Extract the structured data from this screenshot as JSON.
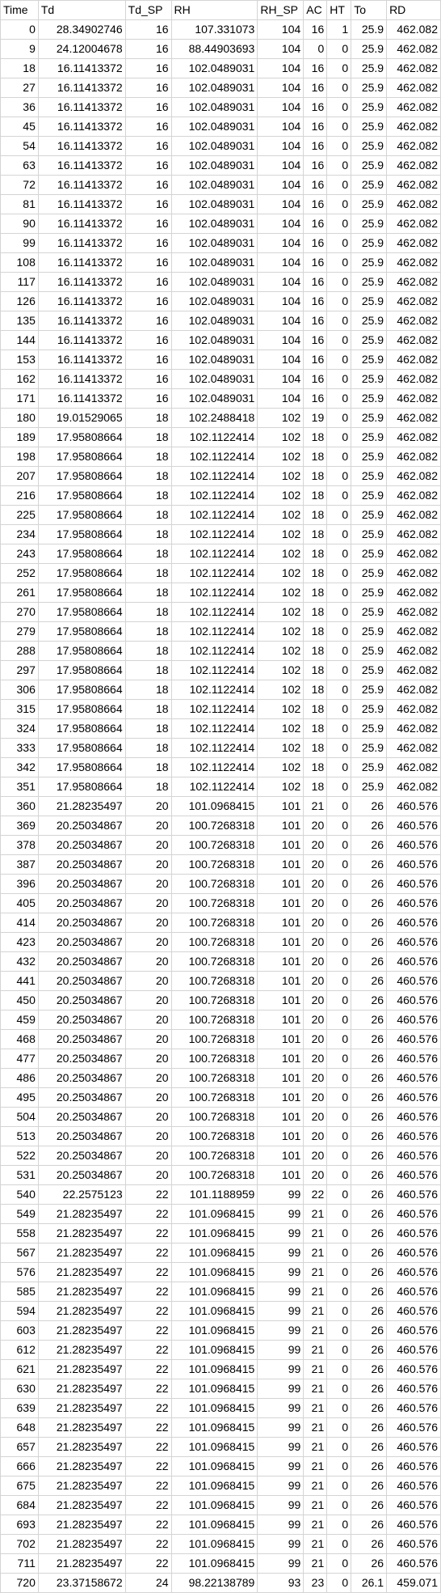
{
  "columns": [
    "Time",
    "Td",
    "Td_SP",
    "RH",
    "RH_SP",
    "AC",
    "HT",
    "To",
    "RD"
  ],
  "rows": [
    [
      "0",
      "28.34902746",
      "16",
      "107.331073",
      "104",
      "16",
      "1",
      "25.9",
      "462.082"
    ],
    [
      "9",
      "24.12004678",
      "16",
      "88.44903693",
      "104",
      "0",
      "0",
      "25.9",
      "462.082"
    ],
    [
      "18",
      "16.11413372",
      "16",
      "102.0489031",
      "104",
      "16",
      "0",
      "25.9",
      "462.082"
    ],
    [
      "27",
      "16.11413372",
      "16",
      "102.0489031",
      "104",
      "16",
      "0",
      "25.9",
      "462.082"
    ],
    [
      "36",
      "16.11413372",
      "16",
      "102.0489031",
      "104",
      "16",
      "0",
      "25.9",
      "462.082"
    ],
    [
      "45",
      "16.11413372",
      "16",
      "102.0489031",
      "104",
      "16",
      "0",
      "25.9",
      "462.082"
    ],
    [
      "54",
      "16.11413372",
      "16",
      "102.0489031",
      "104",
      "16",
      "0",
      "25.9",
      "462.082"
    ],
    [
      "63",
      "16.11413372",
      "16",
      "102.0489031",
      "104",
      "16",
      "0",
      "25.9",
      "462.082"
    ],
    [
      "72",
      "16.11413372",
      "16",
      "102.0489031",
      "104",
      "16",
      "0",
      "25.9",
      "462.082"
    ],
    [
      "81",
      "16.11413372",
      "16",
      "102.0489031",
      "104",
      "16",
      "0",
      "25.9",
      "462.082"
    ],
    [
      "90",
      "16.11413372",
      "16",
      "102.0489031",
      "104",
      "16",
      "0",
      "25.9",
      "462.082"
    ],
    [
      "99",
      "16.11413372",
      "16",
      "102.0489031",
      "104",
      "16",
      "0",
      "25.9",
      "462.082"
    ],
    [
      "108",
      "16.11413372",
      "16",
      "102.0489031",
      "104",
      "16",
      "0",
      "25.9",
      "462.082"
    ],
    [
      "117",
      "16.11413372",
      "16",
      "102.0489031",
      "104",
      "16",
      "0",
      "25.9",
      "462.082"
    ],
    [
      "126",
      "16.11413372",
      "16",
      "102.0489031",
      "104",
      "16",
      "0",
      "25.9",
      "462.082"
    ],
    [
      "135",
      "16.11413372",
      "16",
      "102.0489031",
      "104",
      "16",
      "0",
      "25.9",
      "462.082"
    ],
    [
      "144",
      "16.11413372",
      "16",
      "102.0489031",
      "104",
      "16",
      "0",
      "25.9",
      "462.082"
    ],
    [
      "153",
      "16.11413372",
      "16",
      "102.0489031",
      "104",
      "16",
      "0",
      "25.9",
      "462.082"
    ],
    [
      "162",
      "16.11413372",
      "16",
      "102.0489031",
      "104",
      "16",
      "0",
      "25.9",
      "462.082"
    ],
    [
      "171",
      "16.11413372",
      "16",
      "102.0489031",
      "104",
      "16",
      "0",
      "25.9",
      "462.082"
    ],
    [
      "180",
      "19.01529065",
      "18",
      "102.2488418",
      "102",
      "19",
      "0",
      "25.9",
      "462.082"
    ],
    [
      "189",
      "17.95808664",
      "18",
      "102.1122414",
      "102",
      "18",
      "0",
      "25.9",
      "462.082"
    ],
    [
      "198",
      "17.95808664",
      "18",
      "102.1122414",
      "102",
      "18",
      "0",
      "25.9",
      "462.082"
    ],
    [
      "207",
      "17.95808664",
      "18",
      "102.1122414",
      "102",
      "18",
      "0",
      "25.9",
      "462.082"
    ],
    [
      "216",
      "17.95808664",
      "18",
      "102.1122414",
      "102",
      "18",
      "0",
      "25.9",
      "462.082"
    ],
    [
      "225",
      "17.95808664",
      "18",
      "102.1122414",
      "102",
      "18",
      "0",
      "25.9",
      "462.082"
    ],
    [
      "234",
      "17.95808664",
      "18",
      "102.1122414",
      "102",
      "18",
      "0",
      "25.9",
      "462.082"
    ],
    [
      "243",
      "17.95808664",
      "18",
      "102.1122414",
      "102",
      "18",
      "0",
      "25.9",
      "462.082"
    ],
    [
      "252",
      "17.95808664",
      "18",
      "102.1122414",
      "102",
      "18",
      "0",
      "25.9",
      "462.082"
    ],
    [
      "261",
      "17.95808664",
      "18",
      "102.1122414",
      "102",
      "18",
      "0",
      "25.9",
      "462.082"
    ],
    [
      "270",
      "17.95808664",
      "18",
      "102.1122414",
      "102",
      "18",
      "0",
      "25.9",
      "462.082"
    ],
    [
      "279",
      "17.95808664",
      "18",
      "102.1122414",
      "102",
      "18",
      "0",
      "25.9",
      "462.082"
    ],
    [
      "288",
      "17.95808664",
      "18",
      "102.1122414",
      "102",
      "18",
      "0",
      "25.9",
      "462.082"
    ],
    [
      "297",
      "17.95808664",
      "18",
      "102.1122414",
      "102",
      "18",
      "0",
      "25.9",
      "462.082"
    ],
    [
      "306",
      "17.95808664",
      "18",
      "102.1122414",
      "102",
      "18",
      "0",
      "25.9",
      "462.082"
    ],
    [
      "315",
      "17.95808664",
      "18",
      "102.1122414",
      "102",
      "18",
      "0",
      "25.9",
      "462.082"
    ],
    [
      "324",
      "17.95808664",
      "18",
      "102.1122414",
      "102",
      "18",
      "0",
      "25.9",
      "462.082"
    ],
    [
      "333",
      "17.95808664",
      "18",
      "102.1122414",
      "102",
      "18",
      "0",
      "25.9",
      "462.082"
    ],
    [
      "342",
      "17.95808664",
      "18",
      "102.1122414",
      "102",
      "18",
      "0",
      "25.9",
      "462.082"
    ],
    [
      "351",
      "17.95808664",
      "18",
      "102.1122414",
      "102",
      "18",
      "0",
      "25.9",
      "462.082"
    ],
    [
      "360",
      "21.28235497",
      "20",
      "101.0968415",
      "101",
      "21",
      "0",
      "26",
      "460.576"
    ],
    [
      "369",
      "20.25034867",
      "20",
      "100.7268318",
      "101",
      "20",
      "0",
      "26",
      "460.576"
    ],
    [
      "378",
      "20.25034867",
      "20",
      "100.7268318",
      "101",
      "20",
      "0",
      "26",
      "460.576"
    ],
    [
      "387",
      "20.25034867",
      "20",
      "100.7268318",
      "101",
      "20",
      "0",
      "26",
      "460.576"
    ],
    [
      "396",
      "20.25034867",
      "20",
      "100.7268318",
      "101",
      "20",
      "0",
      "26",
      "460.576"
    ],
    [
      "405",
      "20.25034867",
      "20",
      "100.7268318",
      "101",
      "20",
      "0",
      "26",
      "460.576"
    ],
    [
      "414",
      "20.25034867",
      "20",
      "100.7268318",
      "101",
      "20",
      "0",
      "26",
      "460.576"
    ],
    [
      "423",
      "20.25034867",
      "20",
      "100.7268318",
      "101",
      "20",
      "0",
      "26",
      "460.576"
    ],
    [
      "432",
      "20.25034867",
      "20",
      "100.7268318",
      "101",
      "20",
      "0",
      "26",
      "460.576"
    ],
    [
      "441",
      "20.25034867",
      "20",
      "100.7268318",
      "101",
      "20",
      "0",
      "26",
      "460.576"
    ],
    [
      "450",
      "20.25034867",
      "20",
      "100.7268318",
      "101",
      "20",
      "0",
      "26",
      "460.576"
    ],
    [
      "459",
      "20.25034867",
      "20",
      "100.7268318",
      "101",
      "20",
      "0",
      "26",
      "460.576"
    ],
    [
      "468",
      "20.25034867",
      "20",
      "100.7268318",
      "101",
      "20",
      "0",
      "26",
      "460.576"
    ],
    [
      "477",
      "20.25034867",
      "20",
      "100.7268318",
      "101",
      "20",
      "0",
      "26",
      "460.576"
    ],
    [
      "486",
      "20.25034867",
      "20",
      "100.7268318",
      "101",
      "20",
      "0",
      "26",
      "460.576"
    ],
    [
      "495",
      "20.25034867",
      "20",
      "100.7268318",
      "101",
      "20",
      "0",
      "26",
      "460.576"
    ],
    [
      "504",
      "20.25034867",
      "20",
      "100.7268318",
      "101",
      "20",
      "0",
      "26",
      "460.576"
    ],
    [
      "513",
      "20.25034867",
      "20",
      "100.7268318",
      "101",
      "20",
      "0",
      "26",
      "460.576"
    ],
    [
      "522",
      "20.25034867",
      "20",
      "100.7268318",
      "101",
      "20",
      "0",
      "26",
      "460.576"
    ],
    [
      "531",
      "20.25034867",
      "20",
      "100.7268318",
      "101",
      "20",
      "0",
      "26",
      "460.576"
    ],
    [
      "540",
      "22.2575123",
      "22",
      "101.1188959",
      "99",
      "22",
      "0",
      "26",
      "460.576"
    ],
    [
      "549",
      "21.28235497",
      "22",
      "101.0968415",
      "99",
      "21",
      "0",
      "26",
      "460.576"
    ],
    [
      "558",
      "21.28235497",
      "22",
      "101.0968415",
      "99",
      "21",
      "0",
      "26",
      "460.576"
    ],
    [
      "567",
      "21.28235497",
      "22",
      "101.0968415",
      "99",
      "21",
      "0",
      "26",
      "460.576"
    ],
    [
      "576",
      "21.28235497",
      "22",
      "101.0968415",
      "99",
      "21",
      "0",
      "26",
      "460.576"
    ],
    [
      "585",
      "21.28235497",
      "22",
      "101.0968415",
      "99",
      "21",
      "0",
      "26",
      "460.576"
    ],
    [
      "594",
      "21.28235497",
      "22",
      "101.0968415",
      "99",
      "21",
      "0",
      "26",
      "460.576"
    ],
    [
      "603",
      "21.28235497",
      "22",
      "101.0968415",
      "99",
      "21",
      "0",
      "26",
      "460.576"
    ],
    [
      "612",
      "21.28235497",
      "22",
      "101.0968415",
      "99",
      "21",
      "0",
      "26",
      "460.576"
    ],
    [
      "621",
      "21.28235497",
      "22",
      "101.0968415",
      "99",
      "21",
      "0",
      "26",
      "460.576"
    ],
    [
      "630",
      "21.28235497",
      "22",
      "101.0968415",
      "99",
      "21",
      "0",
      "26",
      "460.576"
    ],
    [
      "639",
      "21.28235497",
      "22",
      "101.0968415",
      "99",
      "21",
      "0",
      "26",
      "460.576"
    ],
    [
      "648",
      "21.28235497",
      "22",
      "101.0968415",
      "99",
      "21",
      "0",
      "26",
      "460.576"
    ],
    [
      "657",
      "21.28235497",
      "22",
      "101.0968415",
      "99",
      "21",
      "0",
      "26",
      "460.576"
    ],
    [
      "666",
      "21.28235497",
      "22",
      "101.0968415",
      "99",
      "21",
      "0",
      "26",
      "460.576"
    ],
    [
      "675",
      "21.28235497",
      "22",
      "101.0968415",
      "99",
      "21",
      "0",
      "26",
      "460.576"
    ],
    [
      "684",
      "21.28235497",
      "22",
      "101.0968415",
      "99",
      "21",
      "0",
      "26",
      "460.576"
    ],
    [
      "693",
      "21.28235497",
      "22",
      "101.0968415",
      "99",
      "21",
      "0",
      "26",
      "460.576"
    ],
    [
      "702",
      "21.28235497",
      "22",
      "101.0968415",
      "99",
      "21",
      "0",
      "26",
      "460.576"
    ],
    [
      "711",
      "21.28235497",
      "22",
      "101.0968415",
      "99",
      "21",
      "0",
      "26",
      "460.576"
    ],
    [
      "720",
      "23.37158672",
      "24",
      "98.22138789",
      "93",
      "23",
      "0",
      "26.1",
      "459.071"
    ]
  ],
  "colors": {
    "grid_line": "#d4d4d4",
    "text": "#000000",
    "background": "#ffffff"
  }
}
